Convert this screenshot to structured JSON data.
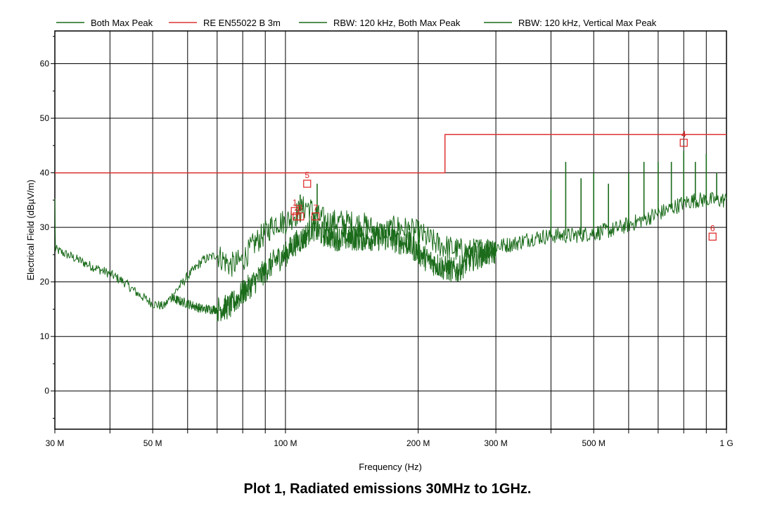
{
  "caption": "Plot 1, Radiated emissions 30MHz to 1GHz.",
  "chart_data": {
    "type": "line",
    "xlabel": "Frequency (Hz)",
    "ylabel": "Electrical Field (dBµV/m)",
    "xscale": "log",
    "xlim": [
      30,
      1000
    ],
    "ylim": [
      -7,
      66
    ],
    "grid": true,
    "legend_position": "top",
    "x_ticks": [
      {
        "value": 30,
        "label": "30 M"
      },
      {
        "value": 50,
        "label": "50 M"
      },
      {
        "value": 100,
        "label": "100 M"
      },
      {
        "value": 200,
        "label": "200 M"
      },
      {
        "value": 300,
        "label": "300 M"
      },
      {
        "value": 500,
        "label": "500 M"
      },
      {
        "value": 1000,
        "label": "1 G"
      }
    ],
    "x_grid": [
      40,
      50,
      60,
      70,
      80,
      90,
      100,
      200,
      300,
      400,
      500,
      600,
      700,
      800,
      900
    ],
    "y_ticks": [
      0,
      10,
      20,
      30,
      40,
      50,
      60
    ],
    "colors": {
      "trace": "#1a6b1a",
      "limit": "#dd3333",
      "marker": "#dd2222",
      "grid": "#000000"
    },
    "legend": [
      {
        "name": "Both Max Peak",
        "color": "#1a6b1a"
      },
      {
        "name": "RE EN55022 B 3m",
        "color": "#dd3333"
      },
      {
        "name": "RBW: 120 kHz, Both Max Peak",
        "color": "#1a6b1a"
      },
      {
        "name": "RBW: 120 kHz, Vertical Max Peak",
        "color": "#1a6b1a"
      }
    ],
    "series": [
      {
        "name": "RE EN55022 B 3m",
        "color": "#dd3333",
        "points": [
          [
            30,
            40
          ],
          [
            230,
            40
          ],
          [
            230,
            47
          ],
          [
            1000,
            47
          ]
        ]
      },
      {
        "name": "RBW: 120 kHz, Both Max Peak",
        "color": "#1a6b1a",
        "points": [
          [
            30,
            26
          ],
          [
            33,
            24.5
          ],
          [
            36,
            23
          ],
          [
            40,
            21.5
          ],
          [
            43,
            20
          ],
          [
            46,
            18
          ],
          [
            50,
            16
          ],
          [
            53,
            15.5
          ],
          [
            56,
            18
          ],
          [
            60,
            21
          ],
          [
            65,
            24
          ],
          [
            70,
            25
          ],
          [
            75,
            23
          ],
          [
            80,
            24
          ],
          [
            85,
            27
          ],
          [
            90,
            29
          ],
          [
            95,
            31
          ],
          [
            100,
            31
          ],
          [
            104,
            32
          ],
          [
            108,
            33
          ],
          [
            112,
            34
          ],
          [
            118,
            32
          ],
          [
            125,
            31
          ],
          [
            135,
            31
          ],
          [
            150,
            30.5
          ],
          [
            165,
            29
          ],
          [
            180,
            30
          ],
          [
            200,
            29
          ],
          [
            220,
            27
          ],
          [
            240,
            26
          ],
          [
            260,
            25.5
          ],
          [
            280,
            26
          ],
          [
            300,
            26.5
          ],
          [
            330,
            27
          ],
          [
            360,
            28
          ],
          [
            400,
            28.5
          ],
          [
            450,
            28.5
          ],
          [
            500,
            29
          ],
          [
            550,
            29.5
          ],
          [
            600,
            30.5
          ],
          [
            650,
            31.5
          ],
          [
            700,
            32.5
          ],
          [
            750,
            33.5
          ],
          [
            800,
            34.5
          ],
          [
            850,
            35
          ],
          [
            900,
            35
          ],
          [
            950,
            35
          ],
          [
            1000,
            35
          ]
        ]
      },
      {
        "name": "RBW: 120 kHz, Vertical Max Peak",
        "color": "#1a6b1a",
        "points": [
          [
            55,
            17
          ],
          [
            60,
            16
          ],
          [
            65,
            15
          ],
          [
            70,
            15
          ],
          [
            75,
            15.5
          ],
          [
            80,
            18
          ],
          [
            85,
            20
          ],
          [
            90,
            22
          ],
          [
            95,
            24
          ],
          [
            100,
            25
          ],
          [
            105,
            27
          ],
          [
            110,
            28
          ],
          [
            115,
            30
          ],
          [
            120,
            29
          ],
          [
            130,
            28
          ],
          [
            150,
            28
          ],
          [
            170,
            28
          ],
          [
            190,
            27
          ],
          [
            210,
            24
          ],
          [
            230,
            22.5
          ],
          [
            245,
            22
          ],
          [
            260,
            24
          ],
          [
            280,
            25
          ],
          [
            300,
            25.5
          ]
        ]
      }
    ],
    "spikes": [
      {
        "x": 108,
        "y": 36
      },
      {
        "x": 118,
        "y": 38
      },
      {
        "x": 400,
        "y": 37
      },
      {
        "x": 432,
        "y": 42
      },
      {
        "x": 468,
        "y": 39
      },
      {
        "x": 500,
        "y": 40
      },
      {
        "x": 540,
        "y": 38
      },
      {
        "x": 600,
        "y": 40
      },
      {
        "x": 650,
        "y": 42
      },
      {
        "x": 700,
        "y": 42
      },
      {
        "x": 750,
        "y": 42
      },
      {
        "x": 800,
        "y": 44
      },
      {
        "x": 850,
        "y": 42
      },
      {
        "x": 900,
        "y": 43.5
      },
      {
        "x": 950,
        "y": 40
      }
    ],
    "markers": [
      {
        "label": "1",
        "x": 105,
        "y": 33
      },
      {
        "label": "2",
        "x": 106,
        "y": 32
      },
      {
        "label": "3",
        "x": 108,
        "y": 32
      },
      {
        "label": "4",
        "x": 800,
        "y": 45.5
      },
      {
        "label": "5",
        "x": 112,
        "y": 38
      },
      {
        "label": "6",
        "x": 930,
        "y": 28.3
      },
      {
        "label": "7",
        "x": 117,
        "y": 32
      }
    ]
  }
}
